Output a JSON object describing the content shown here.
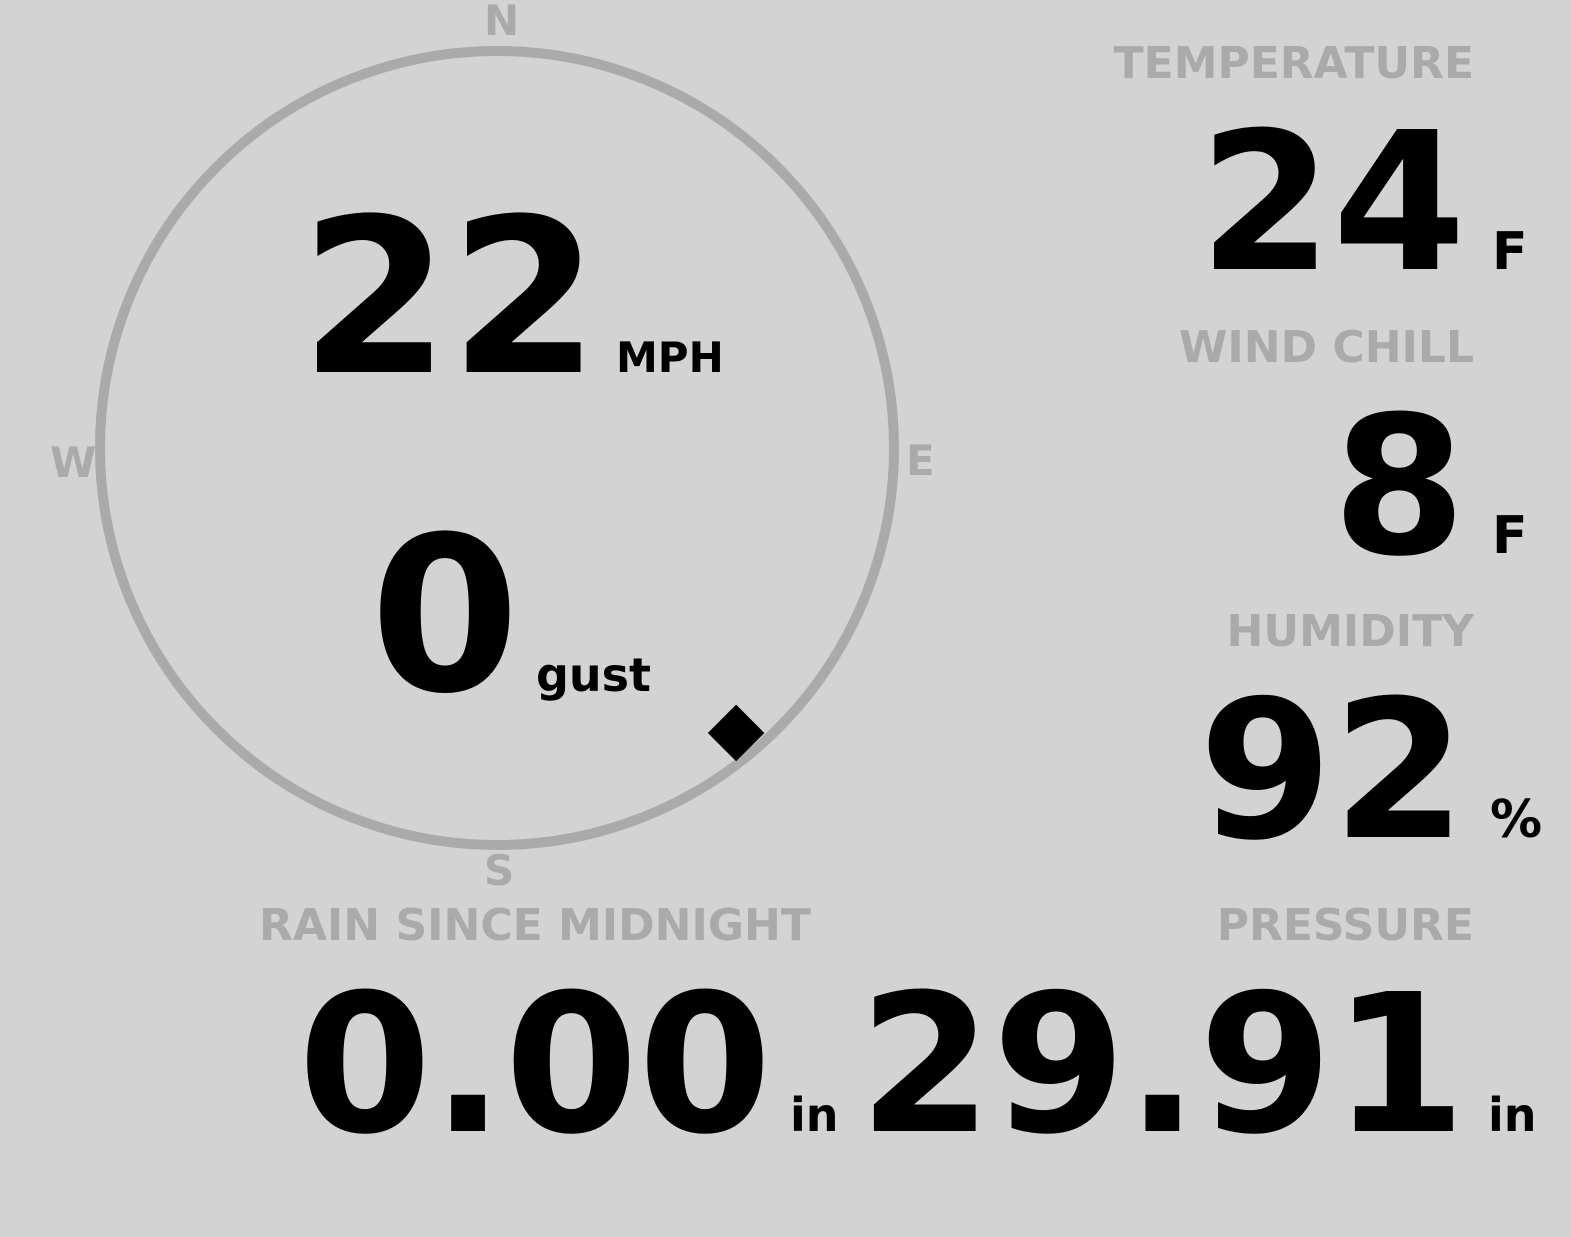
{
  "compass": {
    "north": "N",
    "south": "S",
    "east": "E",
    "west": "W",
    "wind_direction_deg": 140,
    "ring_color": "#aaaaaa",
    "pointer_icon": "diamond-wind-direction-marker"
  },
  "wind": {
    "speed": "22",
    "speed_unit": "MPH",
    "gust": "0",
    "gust_unit": "gust"
  },
  "temperature": {
    "label": "TEMPERATURE",
    "value": "24",
    "unit": "F"
  },
  "wind_chill": {
    "label": "WIND CHILL",
    "value": "8",
    "unit": "F"
  },
  "humidity": {
    "label": "HUMIDITY",
    "value": "92",
    "unit": "%"
  },
  "rain": {
    "label": "RAIN SINCE MIDNIGHT",
    "value": "0.00",
    "unit": "in"
  },
  "pressure": {
    "label": "PRESSURE",
    "value": "29.91",
    "unit": "in"
  },
  "colors": {
    "background": "#d3d3d3",
    "label": "#aaaaaa",
    "value": "#000000"
  }
}
